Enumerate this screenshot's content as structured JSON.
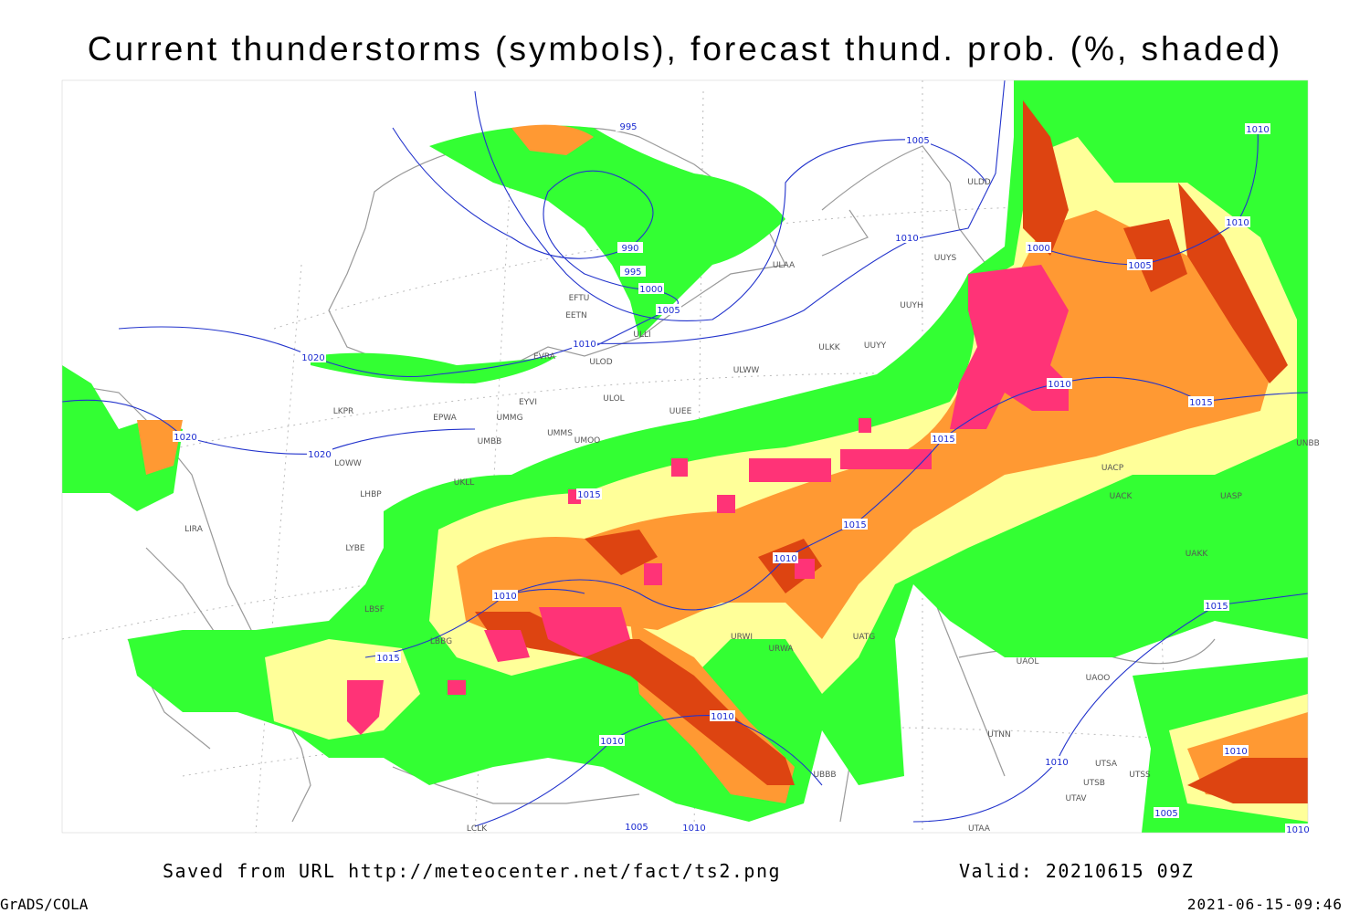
{
  "header": {
    "title": "Current thunderstorms (symbols), forecast thund. prob. (%, shaded)"
  },
  "map": {
    "isobars": [
      "995",
      "1005",
      "1010",
      "1010",
      "990",
      "995",
      "1000",
      "1000",
      "1005",
      "1005",
      "1010",
      "1010",
      "1020",
      "1020",
      "1020",
      "1010",
      "1015",
      "1015",
      "1015",
      "1015",
      "1010",
      "1010",
      "1015",
      "1015",
      "1010",
      "1010",
      "1010",
      "1010",
      "1005",
      "1005",
      "1010",
      "1010"
    ],
    "stations": [
      "ULDD",
      "ULAA",
      "UUYS",
      "UUYH",
      "EFTU",
      "EETN",
      "ULLI",
      "ULKK",
      "UUYY",
      "EVRA",
      "ULOD",
      "ULWW",
      "ULOL",
      "UUEE",
      "EYVI",
      "LKPR",
      "EPWA",
      "UMMG",
      "UMMS",
      "UMOO",
      "UMBB",
      "LOWW",
      "UKLL",
      "LHBP",
      "UACP",
      "UACK",
      "UASP",
      "UNBB",
      "LIRA",
      "LYBE",
      "UAKK",
      "LBSF",
      "LBBG",
      "URWI",
      "URWA",
      "UATG",
      "UAOL",
      "UAOO",
      "UTNN",
      "UBBB",
      "UTSA",
      "UTSB",
      "UTSS",
      "UTAV",
      "UTAA",
      "LCLK"
    ]
  },
  "footer": {
    "source": "Saved from URL http://meteocenter.net/fact/ts2.png",
    "valid": "Valid: 20210615 09Z",
    "software": "GrADS/COLA",
    "timestamp": "2021-06-15-09:46"
  }
}
